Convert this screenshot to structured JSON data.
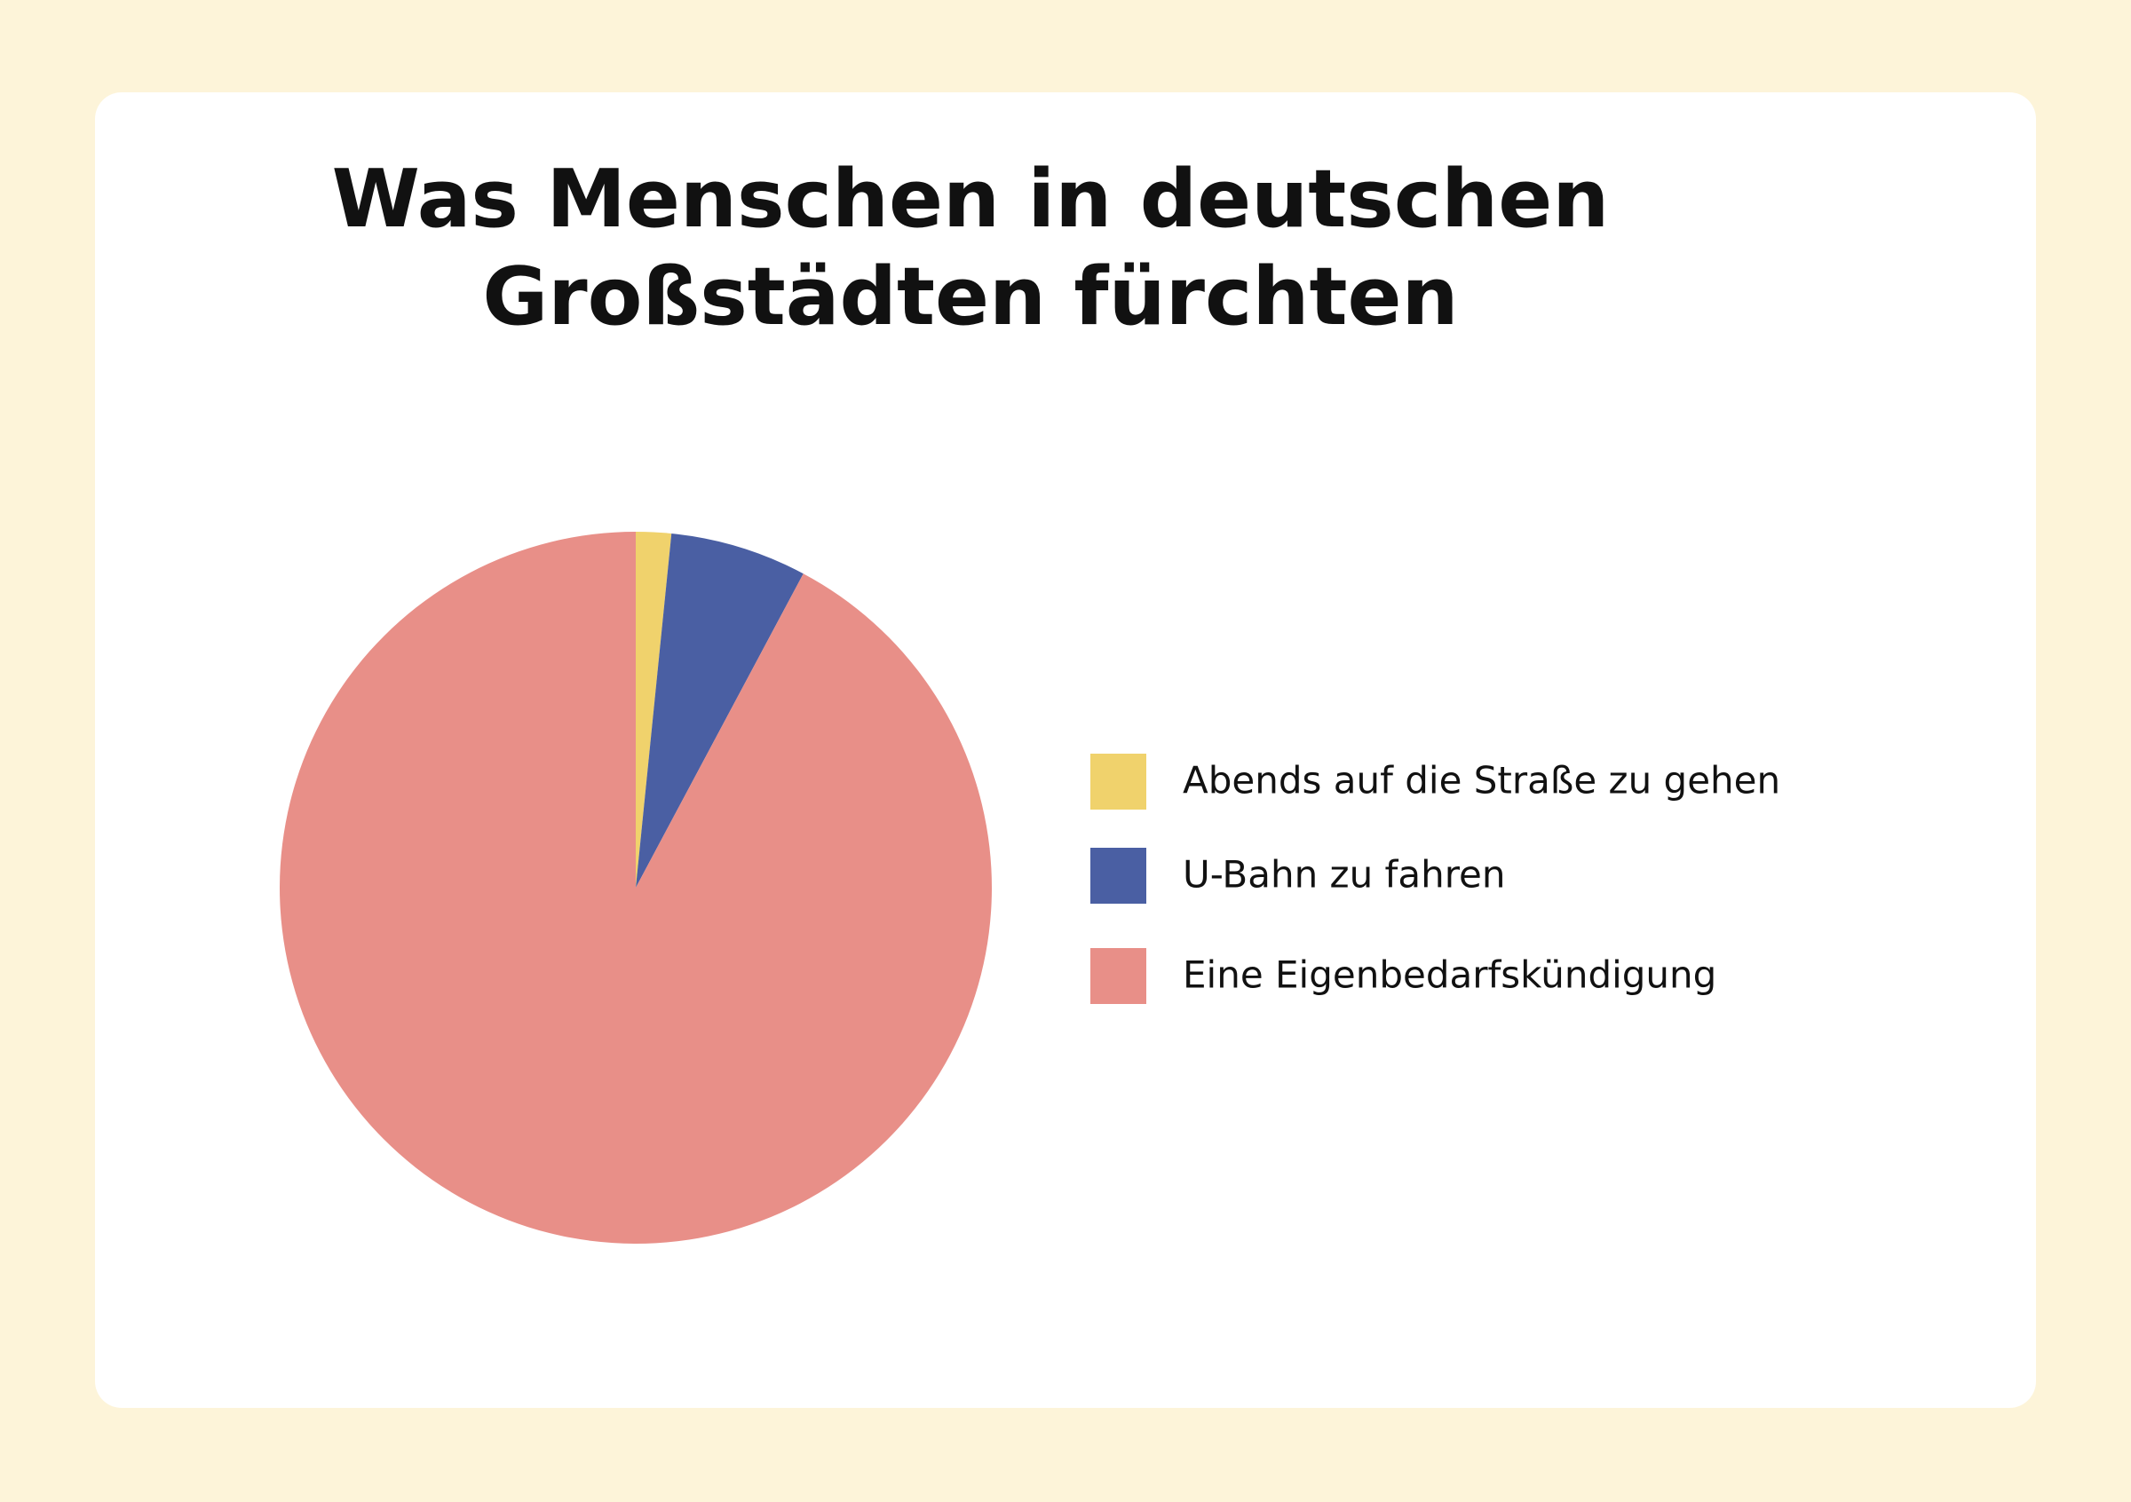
{
  "chart_data": {
    "type": "pie",
    "title": "Was Menschen in deutschen Großstädten fürchten",
    "categories": [
      "Abends auf die Straße zu gehen",
      "U-Bahn zu fahren",
      "Eine Eigenbedarfskündigung"
    ],
    "values": [
      1.6,
      6.2,
      92.2
    ],
    "colors": [
      "#f0d26c",
      "#4a5fa3",
      "#e88f88"
    ],
    "legend": "right"
  }
}
